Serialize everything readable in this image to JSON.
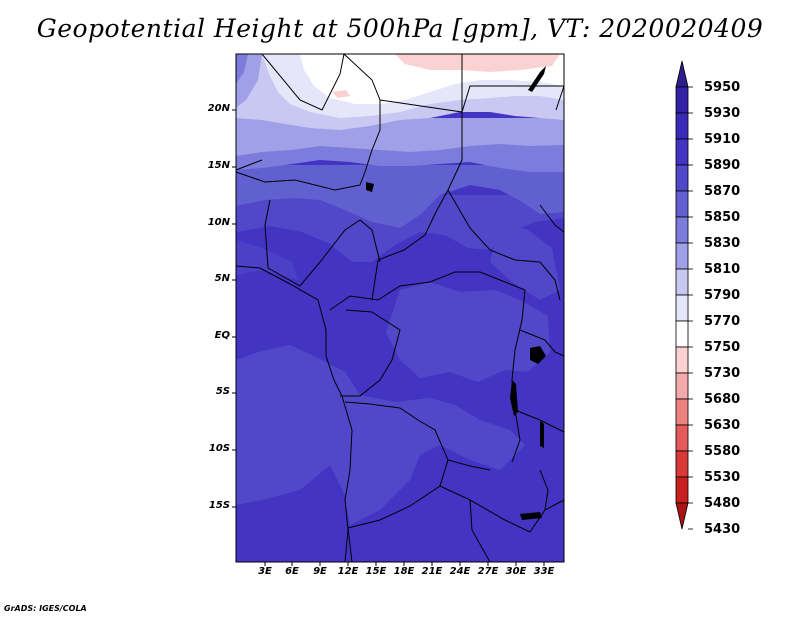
{
  "title": "Geopotential Height at 500hPa [gpm], VT: 2020020409",
  "credit": "GrADS: IGES/COLA",
  "map": {
    "lat_labels": [
      "20N",
      "15N",
      "10N",
      "5N",
      "EQ",
      "5S",
      "10S",
      "15S"
    ],
    "lon_labels": [
      "3E",
      "6E",
      "9E",
      "12E",
      "15E",
      "18E",
      "21E",
      "24E",
      "27E",
      "30E",
      "33E"
    ]
  },
  "colorbar": {
    "levels": [
      "5950",
      "5930",
      "5910",
      "5890",
      "5870",
      "5850",
      "5830",
      "5810",
      "5790",
      "5770",
      "5750",
      "5730",
      "5680",
      "5630",
      "5580",
      "5530",
      "5480",
      "5430"
    ],
    "colors": [
      "#2c1e8c",
      "#3322a8",
      "#3b2ab8",
      "#4434c4",
      "#5048c8",
      "#6060d0",
      "#7c7cdc",
      "#a0a0e8",
      "#c8c8f2",
      "#e6e6fa",
      "#ffffff",
      "#fbd2d2",
      "#f4aaaa",
      "#ec8282",
      "#e35a5a",
      "#d83838",
      "#c82020",
      "#aa1414"
    ]
  }
}
